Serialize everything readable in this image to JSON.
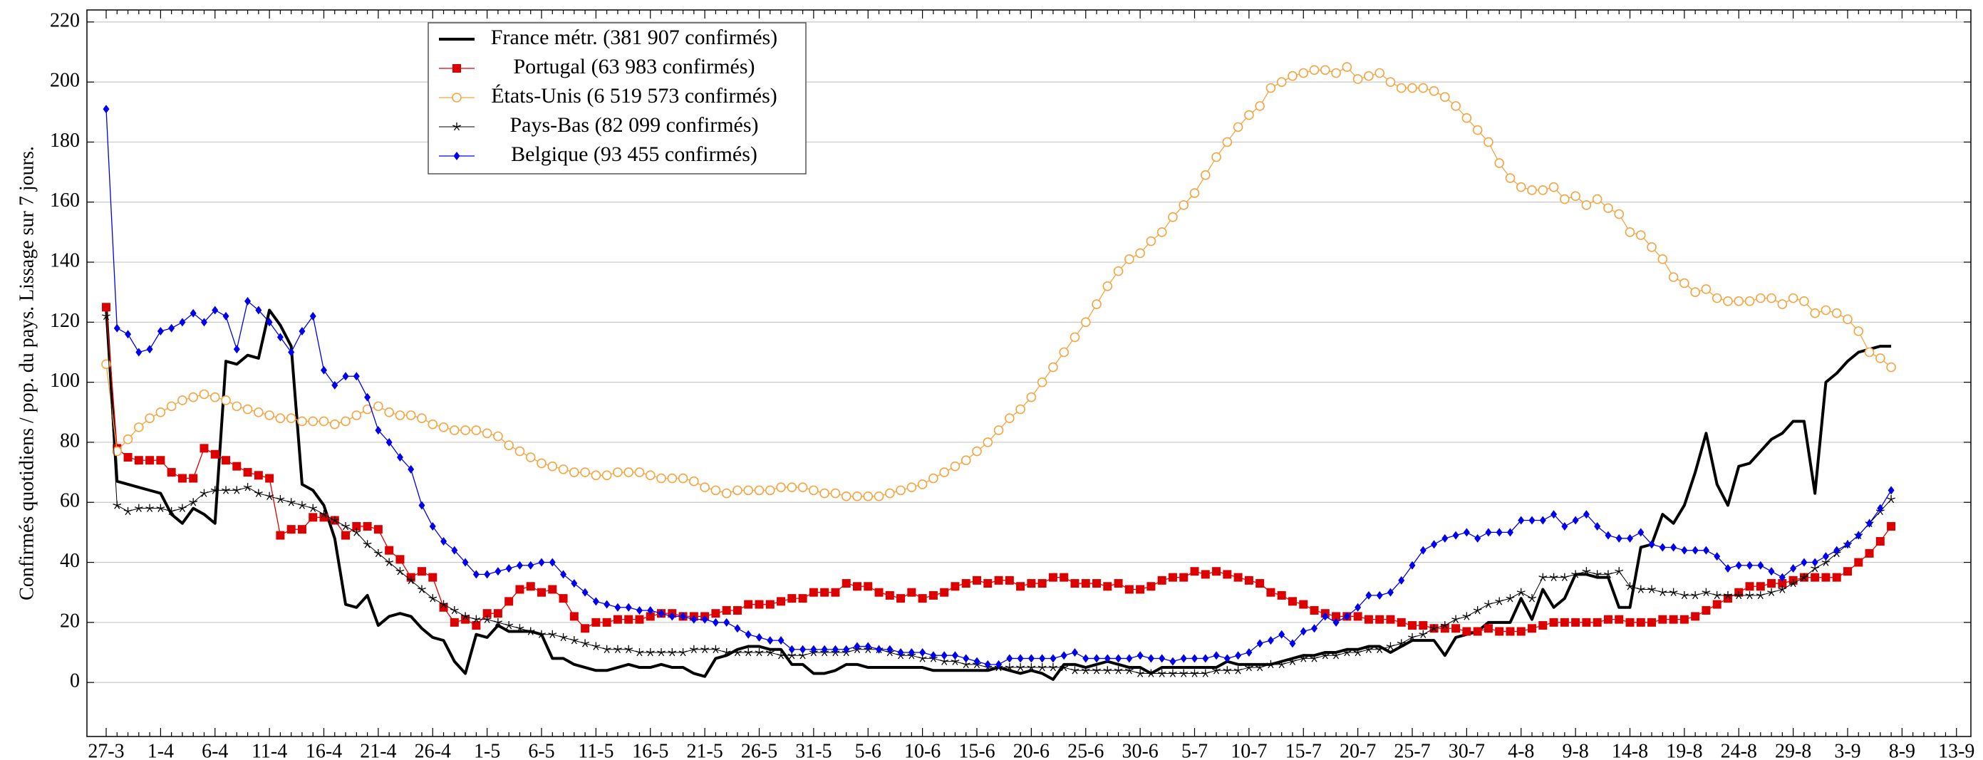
{
  "chart_data": {
    "type": "line",
    "ylabel": "Confirmés quotidiens / pop. du pays. Lissage sur 7 jours.",
    "categories": [
      "27-3",
      null,
      null,
      null,
      null,
      "1-4",
      null,
      null,
      null,
      null,
      "6-4",
      null,
      null,
      null,
      null,
      "11-4",
      null,
      null,
      null,
      null,
      "16-4",
      null,
      null,
      null,
      null,
      "21-4",
      null,
      null,
      null,
      null,
      "26-4",
      null,
      null,
      null,
      null,
      "1-5",
      null,
      null,
      null,
      null,
      "6-5",
      null,
      null,
      null,
      null,
      "11-5",
      null,
      null,
      null,
      null,
      "16-5",
      null,
      null,
      null,
      null,
      "21-5",
      null,
      null,
      null,
      null,
      "26-5",
      null,
      null,
      null,
      null,
      "31-5",
      null,
      null,
      null,
      null,
      "5-6",
      null,
      null,
      null,
      null,
      "10-6",
      null,
      null,
      null,
      null,
      "15-6",
      null,
      null,
      null,
      null,
      "20-6",
      null,
      null,
      null,
      null,
      "25-6",
      null,
      null,
      null,
      null,
      "30-6",
      null,
      null,
      null,
      null,
      "5-7",
      null,
      null,
      null,
      null,
      "10-7",
      null,
      null,
      null,
      null,
      "15-7",
      null,
      null,
      null,
      null,
      "20-7",
      null,
      null,
      null,
      null,
      "25-7",
      null,
      null,
      null,
      null,
      "30-7",
      null,
      null,
      null,
      null,
      "4-8",
      null,
      null,
      null,
      null,
      "9-8",
      null,
      null,
      null,
      null,
      "14-8",
      null,
      null,
      null,
      null,
      "19-8",
      null,
      null,
      null,
      null,
      "24-8",
      null,
      null,
      null,
      null,
      "29-8",
      null,
      null,
      null,
      null,
      "3-9",
      null,
      null,
      null,
      null,
      "8-9",
      null,
      null,
      null,
      null,
      "13-9"
    ],
    "ylim": [
      -18,
      224
    ],
    "yticks": [
      0,
      20,
      40,
      60,
      80,
      100,
      120,
      140,
      160,
      180,
      200,
      220
    ],
    "grid": true,
    "series": [
      {
        "name": "France métr. (381 907 confirmés)",
        "color": "#000000",
        "marker": "none",
        "line_width": 4,
        "values": [
          125,
          67,
          66,
          65,
          64,
          63,
          56,
          53,
          58,
          56,
          53,
          107,
          106,
          109,
          108,
          124,
          119,
          112,
          66,
          64,
          59,
          48,
          26,
          25,
          29,
          19,
          22,
          23,
          22,
          18,
          15,
          14,
          7,
          3,
          16,
          15,
          19,
          17,
          17,
          17,
          16,
          8,
          8,
          6,
          5,
          4,
          4,
          5,
          6,
          5,
          5,
          6,
          5,
          5,
          3,
          2,
          8,
          9,
          11,
          12,
          12,
          11,
          11,
          6,
          6,
          3,
          3,
          4,
          6,
          6,
          5,
          5,
          5,
          5,
          5,
          5,
          4,
          4,
          4,
          4,
          4,
          4,
          5,
          4,
          3,
          4,
          3,
          1,
          6,
          6,
          5,
          6,
          7,
          6,
          5,
          5,
          3,
          5,
          5,
          5,
          5,
          5,
          5,
          7,
          6,
          6,
          6,
          6,
          7,
          8,
          9,
          9,
          10,
          10,
          11,
          11,
          12,
          12,
          10,
          12,
          14,
          14,
          14,
          9,
          15,
          16,
          17,
          20,
          20,
          20,
          28,
          21,
          31,
          25,
          28,
          36,
          36,
          35,
          35,
          25,
          25,
          45,
          46,
          56,
          53,
          59,
          70,
          83,
          66,
          59,
          72,
          73,
          77,
          81,
          83,
          87,
          87,
          63,
          100,
          103,
          107,
          110,
          111,
          112,
          112,
          null,
          null,
          null,
          null,
          null,
          null
        ]
      },
      {
        "name": "Portugal (63 983 confirmés)",
        "color": "#dd0000",
        "marker": "square",
        "line_width": 1.3,
        "values": [
          125,
          78,
          75,
          74,
          74,
          74,
          70,
          68,
          68,
          78,
          76,
          74,
          72,
          70,
          69,
          68,
          49,
          51,
          51,
          55,
          55,
          54,
          49,
          52,
          52,
          51,
          44,
          41,
          35,
          37,
          35,
          25,
          20,
          21,
          19,
          23,
          23,
          27,
          31,
          32,
          30,
          31,
          28,
          22,
          18,
          20,
          20,
          21,
          21,
          21,
          22,
          23,
          23,
          22,
          22,
          22,
          23,
          24,
          24,
          26,
          26,
          26,
          27,
          28,
          28,
          30,
          30,
          30,
          33,
          32,
          32,
          30,
          29,
          28,
          30,
          28,
          29,
          30,
          32,
          33,
          34,
          33,
          34,
          34,
          32,
          33,
          33,
          35,
          35,
          33,
          33,
          33,
          32,
          33,
          31,
          31,
          32,
          34,
          35,
          35,
          37,
          36,
          37,
          36,
          35,
          34,
          33,
          30,
          29,
          27,
          26,
          24,
          23,
          22,
          22,
          22,
          21,
          21,
          21,
          20,
          19,
          19,
          18,
          18,
          18,
          17,
          17,
          18,
          17,
          17,
          17,
          18,
          19,
          20,
          20,
          20,
          20,
          20,
          21,
          21,
          20,
          20,
          20,
          21,
          21,
          21,
          22,
          24,
          26,
          28,
          30,
          32,
          32,
          33,
          33,
          34,
          35,
          35,
          35,
          35,
          37,
          40,
          43,
          47,
          52,
          null,
          null,
          null,
          null,
          null,
          null
        ]
      },
      {
        "name": "États-Unis (6 519 573 confirmés)",
        "color": "#f5a442",
        "marker": "circle",
        "line_width": 1.3,
        "values": [
          106,
          77,
          81,
          85,
          88,
          90,
          92,
          94,
          95,
          96,
          95,
          94,
          92,
          91,
          90,
          89,
          88,
          88,
          87,
          87,
          87,
          86,
          87,
          89,
          91,
          92,
          90,
          89,
          89,
          88,
          86,
          85,
          84,
          84,
          84,
          83,
          82,
          79,
          77,
          75,
          73,
          72,
          71,
          70,
          70,
          69,
          69,
          70,
          70,
          70,
          69,
          68,
          68,
          68,
          67,
          65,
          64,
          63,
          64,
          64,
          64,
          64,
          65,
          65,
          65,
          64,
          63,
          63,
          62,
          62,
          62,
          62,
          63,
          64,
          65,
          66,
          68,
          70,
          72,
          74,
          77,
          80,
          84,
          88,
          91,
          95,
          100,
          105,
          110,
          115,
          120,
          126,
          132,
          137,
          141,
          143,
          147,
          150,
          155,
          159,
          163,
          169,
          175,
          180,
          185,
          189,
          192,
          198,
          200,
          202,
          203,
          204,
          204,
          203,
          205,
          201,
          202,
          203,
          200,
          198,
          198,
          198,
          197,
          195,
          192,
          188,
          184,
          180,
          173,
          168,
          165,
          164,
          164,
          165,
          161,
          162,
          159,
          161,
          158,
          156,
          150,
          149,
          145,
          141,
          135,
          133,
          130,
          131,
          128,
          127,
          127,
          127,
          128,
          128,
          126,
          128,
          127,
          123,
          124,
          123,
          121,
          117,
          110,
          108,
          105,
          null,
          null,
          null,
          null,
          null,
          null
        ]
      },
      {
        "name": "Pays-Bas (82 099 confirmés)",
        "color": "#000000",
        "marker": "star",
        "line_width": 1,
        "values": [
          122,
          59,
          57,
          58,
          58,
          58,
          57,
          58,
          60,
          63,
          64,
          64,
          64,
          65,
          63,
          62,
          61,
          60,
          59,
          58,
          56,
          54,
          52,
          50,
          46,
          43,
          40,
          37,
          34,
          31,
          28,
          26,
          24,
          22,
          21,
          21,
          20,
          19,
          18,
          17,
          16,
          16,
          15,
          14,
          13,
          12,
          11,
          11,
          11,
          10,
          10,
          10,
          10,
          10,
          11,
          11,
          11,
          10,
          10,
          10,
          10,
          10,
          9,
          9,
          9,
          10,
          10,
          10,
          10,
          11,
          11,
          11,
          10,
          9,
          9,
          8,
          8,
          7,
          7,
          6,
          6,
          5,
          5,
          5,
          5,
          5,
          5,
          5,
          5,
          4,
          4,
          4,
          4,
          4,
          4,
          3,
          3,
          3,
          3,
          3,
          3,
          3,
          4,
          4,
          4,
          5,
          5,
          6,
          6,
          7,
          8,
          8,
          9,
          9,
          10,
          10,
          11,
          11,
          12,
          13,
          15,
          16,
          18,
          19,
          21,
          22,
          24,
          26,
          27,
          28,
          30,
          28,
          35,
          35,
          35,
          36,
          37,
          36,
          36,
          37,
          32,
          31,
          31,
          30,
          30,
          29,
          29,
          30,
          29,
          29,
          29,
          29,
          29,
          30,
          31,
          33,
          35,
          38,
          40,
          43,
          46,
          49,
          53,
          57,
          61,
          null,
          null,
          null,
          null,
          null,
          null
        ]
      },
      {
        "name": "Belgique (93 455 confirmés)",
        "color": "#0000ee",
        "marker": "diamond",
        "line_width": 1.3,
        "values": [
          191,
          118,
          116,
          110,
          111,
          117,
          118,
          120,
          123,
          120,
          124,
          122,
          111,
          127,
          124,
          120,
          115,
          110,
          117,
          122,
          104,
          99,
          102,
          102,
          95,
          84,
          80,
          75,
          71,
          59,
          52,
          47,
          44,
          40,
          36,
          36,
          37,
          38,
          39,
          39,
          40,
          40,
          36,
          33,
          30,
          27,
          26,
          25,
          25,
          24,
          24,
          23,
          22,
          22,
          21,
          21,
          20,
          20,
          18,
          16,
          15,
          14,
          14,
          11,
          11,
          11,
          11,
          11,
          11,
          12,
          12,
          11,
          11,
          10,
          10,
          10,
          9,
          9,
          9,
          8,
          7,
          6,
          6,
          8,
          8,
          8,
          8,
          8,
          9,
          10,
          8,
          8,
          8,
          8,
          8,
          9,
          8,
          8,
          7,
          8,
          8,
          8,
          9,
          8,
          9,
          10,
          13,
          14,
          16,
          13,
          17,
          18,
          22,
          20,
          22,
          25,
          29,
          29,
          30,
          34,
          39,
          44,
          46,
          48,
          49,
          50,
          48,
          50,
          50,
          50,
          54,
          54,
          54,
          56,
          52,
          54,
          56,
          52,
          49,
          48,
          48,
          50,
          46,
          45,
          45,
          44,
          44,
          44,
          42,
          38,
          39,
          39,
          39,
          37,
          35,
          38,
          40,
          40,
          42,
          44,
          46,
          49,
          53,
          58,
          64,
          null,
          null,
          null,
          null,
          null,
          null
        ]
      }
    ]
  }
}
